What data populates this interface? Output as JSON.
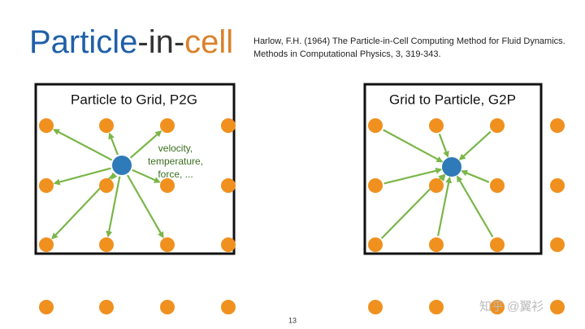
{
  "title": {
    "part1": "Particle",
    "part2": "-in-",
    "part3": "cell"
  },
  "citation": {
    "line1": "Harlow, F.H. (1964) The Particle-in-Cell Computing Method for Fluid Dynamics.",
    "line2": "Methods in Computational Physics, 3, 319-343."
  },
  "left_panel": {
    "title": "Particle to Grid, P2G",
    "annotation": [
      "velocity,",
      "temperature,",
      "force, ..."
    ]
  },
  "right_panel": {
    "title": "Grid to Particle, G2P"
  },
  "page_number": "13",
  "watermark": "知乎 @翼衫"
}
